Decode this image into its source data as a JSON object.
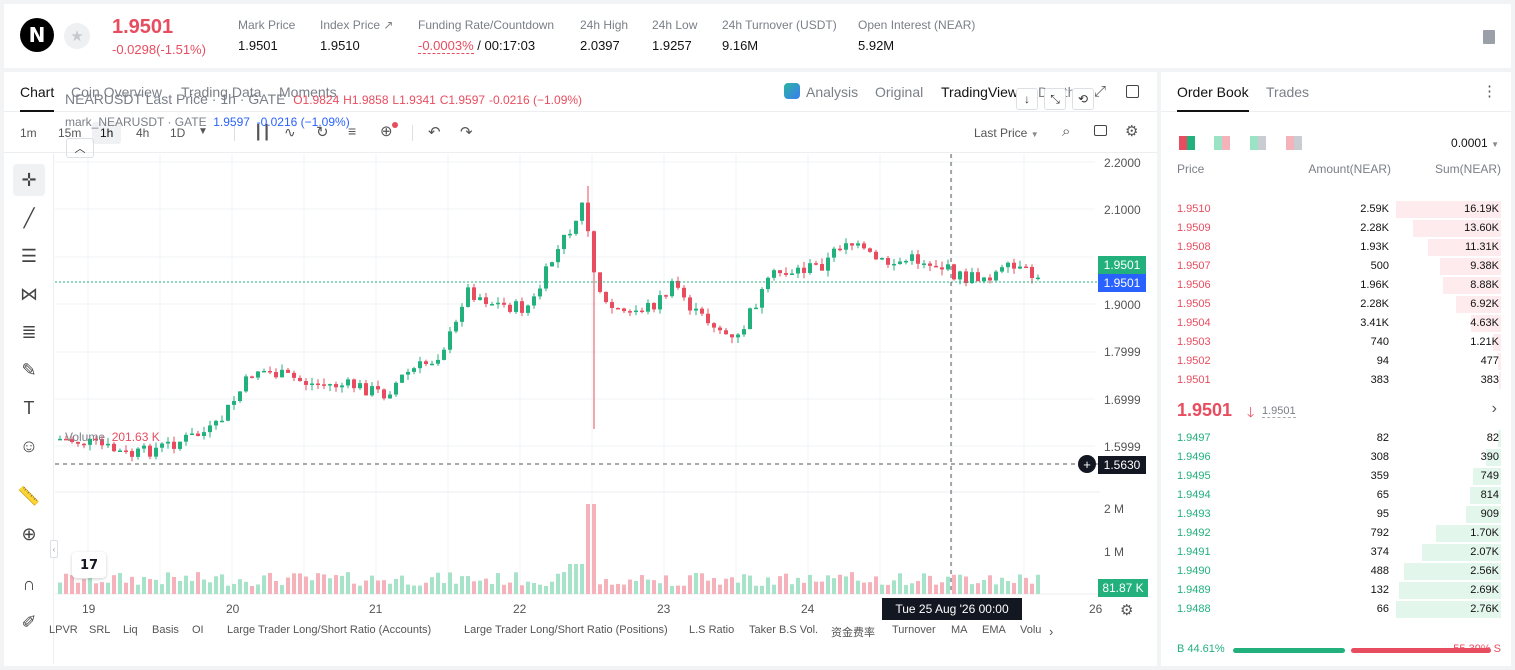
{
  "header": {
    "logo": "N",
    "last_price": "1.9501",
    "change": "-0.0298(-1.51%)",
    "stats": [
      {
        "label": "Mark Price",
        "value": "1.9501"
      },
      {
        "label": "Index Price ↗",
        "value": "1.9510"
      },
      {
        "label": "Funding Rate/Countdown",
        "value_red": "-0.0003%",
        "value": " / 00:17:03"
      },
      {
        "label": "24h High",
        "value": "2.0397"
      },
      {
        "label": "24h Low",
        "value": "1.9257"
      },
      {
        "label": "24h Turnover (USDT)",
        "value": "9.16M"
      },
      {
        "label": "Open Interest (NEAR)",
        "value": "5.92M"
      }
    ]
  },
  "chart_tabs": [
    "Chart",
    "Coin Overview",
    "Trading Data",
    "Moments"
  ],
  "view_tabs": [
    "Analysis",
    "Original",
    "TradingView",
    "Depth"
  ],
  "timeframes": [
    "1m",
    "15m",
    "1h",
    "4h",
    "1D"
  ],
  "price_type": "Last Price",
  "legend": {
    "symbol": "NEARUSDT Last Price · 1h · GATE",
    "o": "O1.9824",
    "h": "H1.9858",
    "l": "L1.9341",
    "c": "C1.9597",
    "chg": "-0.0216 (−1.09%)",
    "mark": "mark_NEARUSDT · GATE",
    "mark_val": "1.9597",
    "mark_chg": "-0.0216 (−1.09%)"
  },
  "volume_legend": {
    "label": "Volume",
    "value": "201.63 K"
  },
  "tv_logo": "17",
  "y_axis": [
    "2.2000",
    "2.1000",
    "1.9000",
    "1.7999",
    "1.6999",
    "1.5999"
  ],
  "y_axis_volume": [
    "2 M",
    "1 M"
  ],
  "price_tags": {
    "last": "1.9501",
    "mark": "1.9501",
    "crosshair": "1.5630",
    "volume": "81.87 K"
  },
  "x_axis": [
    "19",
    "20",
    "21",
    "22",
    "23",
    "24",
    "26"
  ],
  "crosshair_time": "Tue 25 Aug '26   00:00",
  "indicators": [
    "LPVR",
    "SRL",
    "Liq",
    "Basis",
    "OI",
    "Large Trader Long/Short Ratio (Accounts)",
    "Large Trader Long/Short Ratio (Positions)",
    "L.S Ratio",
    "Taker B.S Vol.",
    "资金费率",
    "Turnover",
    "MA",
    "EMA",
    "Volu"
  ],
  "order_book": {
    "tabs": [
      "Order Book",
      "Trades"
    ],
    "precision": "0.0001",
    "columns": [
      "Price",
      "Amount(NEAR)",
      "Sum(NEAR)"
    ],
    "asks": [
      {
        "price": "1.9510",
        "amount": "2.59K",
        "sum": "16.19K",
        "depth": 16.19
      },
      {
        "price": "1.9509",
        "amount": "2.28K",
        "sum": "13.60K",
        "depth": 13.6
      },
      {
        "price": "1.9508",
        "amount": "1.93K",
        "sum": "11.31K",
        "depth": 11.31
      },
      {
        "price": "1.9507",
        "amount": "500",
        "sum": "9.38K",
        "depth": 9.38
      },
      {
        "price": "1.9506",
        "amount": "1.96K",
        "sum": "8.88K",
        "depth": 8.88
      },
      {
        "price": "1.9505",
        "amount": "2.28K",
        "sum": "6.92K",
        "depth": 6.92
      },
      {
        "price": "1.9504",
        "amount": "3.41K",
        "sum": "4.63K",
        "depth": 4.63
      },
      {
        "price": "1.9503",
        "amount": "740",
        "sum": "1.21K",
        "depth": 1.21
      },
      {
        "price": "1.9502",
        "amount": "94",
        "sum": "477",
        "depth": 0.477
      },
      {
        "price": "1.9501",
        "amount": "383",
        "sum": "383",
        "depth": 0.383
      }
    ],
    "mid_price": "1.9501",
    "mid_mark": "1.9501",
    "bids": [
      {
        "price": "1.9497",
        "amount": "82",
        "sum": "82",
        "depth": 0.082
      },
      {
        "price": "1.9496",
        "amount": "308",
        "sum": "390",
        "depth": 0.39
      },
      {
        "price": "1.9495",
        "amount": "359",
        "sum": "749",
        "depth": 0.749
      },
      {
        "price": "1.9494",
        "amount": "65",
        "sum": "814",
        "depth": 0.814
      },
      {
        "price": "1.9493",
        "amount": "95",
        "sum": "909",
        "depth": 0.909
      },
      {
        "price": "1.9492",
        "amount": "792",
        "sum": "1.70K",
        "depth": 1.7
      },
      {
        "price": "1.9491",
        "amount": "374",
        "sum": "2.07K",
        "depth": 2.07
      },
      {
        "price": "1.9490",
        "amount": "488",
        "sum": "2.56K",
        "depth": 2.56
      },
      {
        "price": "1.9489",
        "amount": "132",
        "sum": "2.69K",
        "depth": 2.69
      },
      {
        "price": "1.9488",
        "amount": "66",
        "sum": "2.76K",
        "depth": 2.76
      }
    ],
    "buy_ratio": "B 44.61%",
    "sell_ratio": "55.39% S",
    "buy_pct": 44.61
  },
  "colors": {
    "up": "#22b07d",
    "down": "#e84d5f",
    "accent": "#2962ff"
  }
}
